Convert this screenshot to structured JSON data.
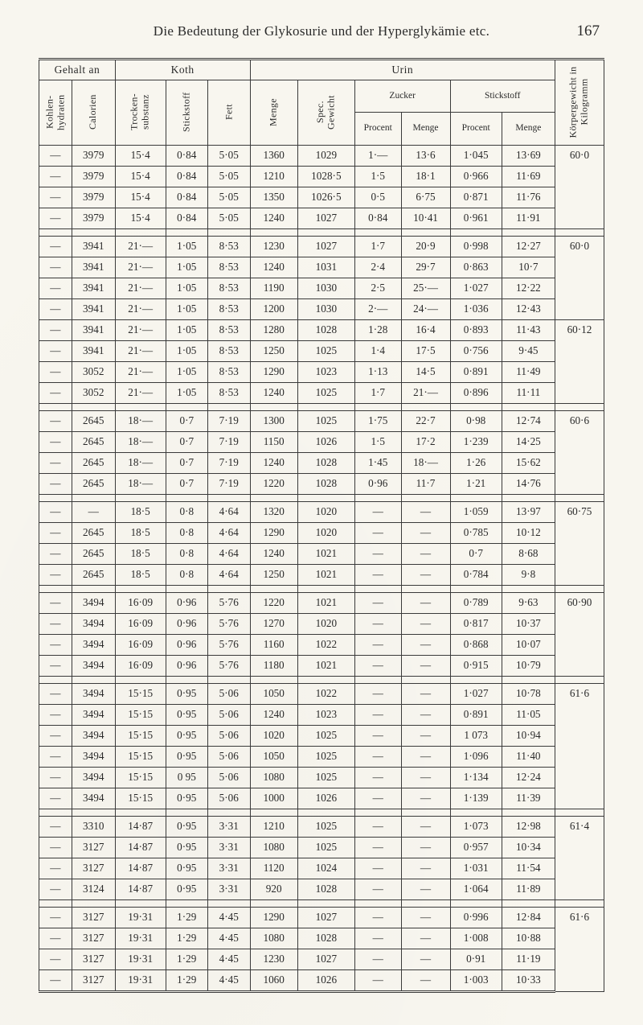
{
  "header": {
    "title": "Die Bedeutung der Glykosurie und der Hyperglykämie etc.",
    "page_number": "167"
  },
  "columns": {
    "gehalt_an": "Gehalt an",
    "koth": "Koth",
    "urin": "Urin",
    "kohlen_hydraten": "Kohlen-\nhydraten",
    "calorien": "Calorien",
    "trocken_substanz": "Trocken-\nsubstanz",
    "stickstoff_k": "Stickstoff",
    "fett": "Fett",
    "menge": "Menge",
    "spec_gewicht": "Spec.\nGewicht",
    "zucker": "Zucker",
    "stickstoff_u": "Stickstoff",
    "procent": "Procent",
    "menge_sub": "Menge",
    "korpergewicht": "Körpergewicht\nin Kilogramm"
  },
  "groups": [
    {
      "weight": "60·0",
      "rows": [
        [
          "—",
          "3979",
          "15·4",
          "0·84",
          "5·05",
          "1360",
          "1029",
          "1·—",
          "13·6",
          "1·045",
          "13·69"
        ],
        [
          "—",
          "3979",
          "15·4",
          "0·84",
          "5·05",
          "1210",
          "1028·5",
          "1·5",
          "18·1",
          "0·966",
          "11·69"
        ],
        [
          "—",
          "3979",
          "15·4",
          "0·84",
          "5·05",
          "1350",
          "1026·5",
          "0·5",
          "6·75",
          "0·871",
          "11·76"
        ],
        [
          "—",
          "3979",
          "15·4",
          "0·84",
          "5·05",
          "1240",
          "1027",
          "0·84",
          "10·41",
          "0·961",
          "11·91"
        ]
      ]
    },
    {
      "weight": "60·0",
      "weight_span": 4,
      "extra_weights": [
        "60·12",
        "",
        ""
      ],
      "rows": [
        [
          "—",
          "3941",
          "21·—",
          "1·05",
          "8·53",
          "1230",
          "1027",
          "1·7",
          "20·9",
          "0·998",
          "12·27"
        ],
        [
          "—",
          "3941",
          "21·—",
          "1·05",
          "8·53",
          "1240",
          "1031",
          "2·4",
          "29·7",
          "0·863",
          "10·7"
        ],
        [
          "—",
          "3941",
          "21·—",
          "1·05",
          "8·53",
          "1190",
          "1030",
          "2·5",
          "25·—",
          "1·027",
          "12·22"
        ],
        [
          "—",
          "3941",
          "21·—",
          "1·05",
          "8·53",
          "1200",
          "1030",
          "2·—",
          "24·—",
          "1·036",
          "12·43"
        ],
        [
          "—",
          "3941",
          "21·—",
          "1·05",
          "8·53",
          "1280",
          "1028",
          "1·28",
          "16·4",
          "0·893",
          "11·43"
        ],
        [
          "—",
          "3941",
          "21·—",
          "1·05",
          "8·53",
          "1250",
          "1025",
          "1·4",
          "17·5",
          "0·756",
          "9·45"
        ],
        [
          "—",
          "3052",
          "21·—",
          "1·05",
          "8·53",
          "1290",
          "1023",
          "1·13",
          "14·5",
          "0·891",
          "11·49"
        ],
        [
          "—",
          "3052",
          "21·—",
          "1·05",
          "8·53",
          "1240",
          "1025",
          "1·7",
          "21·—",
          "0·896",
          "11·11"
        ]
      ]
    },
    {
      "weight": "60·6",
      "rows": [
        [
          "—",
          "2645",
          "18·—",
          "0·7",
          "7·19",
          "1300",
          "1025",
          "1·75",
          "22·7",
          "0·98",
          "12·74"
        ],
        [
          "—",
          "2645",
          "18·—",
          "0·7",
          "7·19",
          "1150",
          "1026",
          "1·5",
          "17·2",
          "1·239",
          "14·25"
        ],
        [
          "—",
          "2645",
          "18·—",
          "0·7",
          "7·19",
          "1240",
          "1028",
          "1·45",
          "18·—",
          "1·26",
          "15·62"
        ],
        [
          "—",
          "2645",
          "18·—",
          "0·7",
          "7·19",
          "1220",
          "1028",
          "0·96",
          "11·7",
          "1·21",
          "14·76"
        ]
      ]
    },
    {
      "weight": "60·75",
      "rows": [
        [
          "—",
          "—",
          "18·5",
          "0·8",
          "4·64",
          "1320",
          "1020",
          "—",
          "—",
          "1·059",
          "13·97"
        ],
        [
          "—",
          "2645",
          "18·5",
          "0·8",
          "4·64",
          "1290",
          "1020",
          "—",
          "—",
          "0·785",
          "10·12"
        ],
        [
          "—",
          "2645",
          "18·5",
          "0·8",
          "4·64",
          "1240",
          "1021",
          "—",
          "—",
          "0·7",
          "8·68"
        ],
        [
          "—",
          "2645",
          "18·5",
          "0·8",
          "4·64",
          "1250",
          "1021",
          "—",
          "—",
          "0·784",
          "9·8"
        ]
      ]
    },
    {
      "weight": "60·90",
      "rows": [
        [
          "—",
          "3494",
          "16·09",
          "0·96",
          "5·76",
          "1220",
          "1021",
          "—",
          "—",
          "0·789",
          "9·63"
        ],
        [
          "—",
          "3494",
          "16·09",
          "0·96",
          "5·76",
          "1270",
          "1020",
          "—",
          "—",
          "0·817",
          "10·37"
        ],
        [
          "—",
          "3494",
          "16·09",
          "0·96",
          "5·76",
          "1160",
          "1022",
          "—",
          "—",
          "0·868",
          "10·07"
        ],
        [
          "—",
          "3494",
          "16·09",
          "0·96",
          "5·76",
          "1180",
          "1021",
          "—",
          "—",
          "0·915",
          "10·79"
        ]
      ]
    },
    {
      "weight": "61·6",
      "rows": [
        [
          "—",
          "3494",
          "15·15",
          "0·95",
          "5·06",
          "1050",
          "1022",
          "—",
          "—",
          "1·027",
          "10·78"
        ],
        [
          "—",
          "3494",
          "15·15",
          "0·95",
          "5·06",
          "1240",
          "1023",
          "—",
          "—",
          "0·891",
          "11·05"
        ],
        [
          "—",
          "3494",
          "15·15",
          "0·95",
          "5·06",
          "1020",
          "1025",
          "—",
          "—",
          "1 073",
          "10·94"
        ],
        [
          "—",
          "3494",
          "15·15",
          "0·95",
          "5·06",
          "1050",
          "1025",
          "—",
          "—",
          "1·096",
          "11·40"
        ],
        [
          "—",
          "3494",
          "15·15",
          "0 95",
          "5·06",
          "1080",
          "1025",
          "—",
          "—",
          "1·134",
          "12·24"
        ],
        [
          "—",
          "3494",
          "15·15",
          "0·95",
          "5·06",
          "1000",
          "1026",
          "—",
          "—",
          "1·139",
          "11·39"
        ]
      ]
    },
    {
      "weight": "61·4",
      "rows": [
        [
          "—",
          "3310",
          "14·87",
          "0·95",
          "3·31",
          "1210",
          "1025",
          "—",
          "—",
          "1·073",
          "12·98"
        ],
        [
          "—",
          "3127",
          "14·87",
          "0·95",
          "3·31",
          "1080",
          "1025",
          "—",
          "—",
          "0·957",
          "10·34"
        ],
        [
          "—",
          "3127",
          "14·87",
          "0·95",
          "3·31",
          "1120",
          "1024",
          "—",
          "—",
          "1·031",
          "11·54"
        ],
        [
          "—",
          "3124",
          "14·87",
          "0·95",
          "3·31",
          "920",
          "1028",
          "—",
          "—",
          "1·064",
          "11·89"
        ]
      ]
    },
    {
      "weight": "61·6",
      "rows": [
        [
          "—",
          "3127",
          "19·31",
          "1·29",
          "4·45",
          "1290",
          "1027",
          "—",
          "—",
          "0·996",
          "12·84"
        ],
        [
          "—",
          "3127",
          "19·31",
          "1·29",
          "4·45",
          "1080",
          "1028",
          "—",
          "—",
          "1·008",
          "10·88"
        ],
        [
          "—",
          "3127",
          "19·31",
          "1·29",
          "4·45",
          "1230",
          "1027",
          "—",
          "—",
          "0·91",
          "11·19"
        ],
        [
          "—",
          "3127",
          "19·31",
          "1·29",
          "4·45",
          "1060",
          "1026",
          "—",
          "—",
          "1·003",
          "10·33"
        ]
      ]
    }
  ],
  "special_weights_group2": {
    "0": "60·0",
    "4": "60·12"
  }
}
